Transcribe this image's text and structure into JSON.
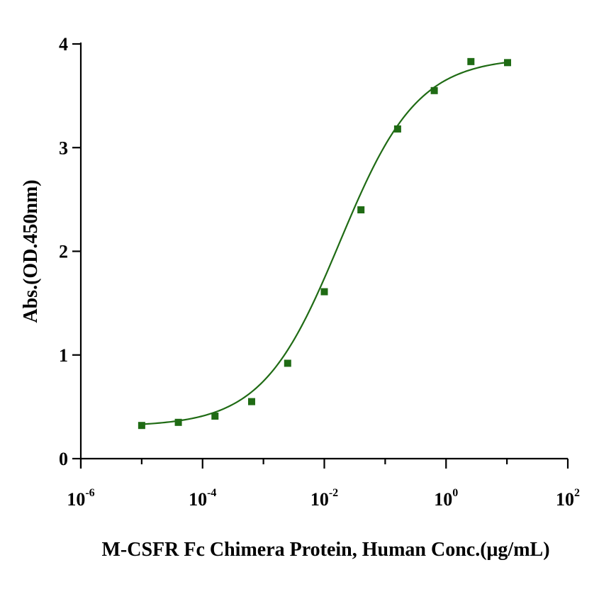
{
  "chart_data": {
    "type": "scatter",
    "title": "",
    "xlabel": "M-CSFR Fc Chimera Protein, Human Conc.(μg/mL)",
    "ylabel": "Abs.(OD.450nm)",
    "xscale": "log10",
    "xlim": [
      1e-06,
      100
    ],
    "ylim": [
      0,
      4
    ],
    "grid": false,
    "legend": "none",
    "x_ticks": [
      {
        "value": 1e-06,
        "base": "10",
        "exp": "-6"
      },
      {
        "value": 0.0001,
        "base": "10",
        "exp": "-4"
      },
      {
        "value": 0.01,
        "base": "10",
        "exp": "-2"
      },
      {
        "value": 1,
        "base": "10",
        "exp": "0"
      },
      {
        "value": 100,
        "base": "10",
        "exp": "2"
      }
    ],
    "y_ticks": [
      "0",
      "1",
      "2",
      "3",
      "4"
    ],
    "series": [
      {
        "x": [
          1e-05,
          4e-05,
          0.00016,
          0.00064,
          0.0025,
          0.01,
          0.04,
          0.16,
          0.64,
          2.56,
          10.24
        ],
        "y": [
          0.32,
          0.35,
          0.41,
          0.55,
          0.92,
          1.61,
          2.4,
          3.18,
          3.55,
          3.83,
          3.82
        ],
        "color": "#1f6b14",
        "marker": "square",
        "fit": "four-parameter logistic"
      }
    ],
    "fit_params": {
      "bottom": 0.31,
      "top": 3.87,
      "ec50": 0.018,
      "hill": 0.68
    }
  }
}
